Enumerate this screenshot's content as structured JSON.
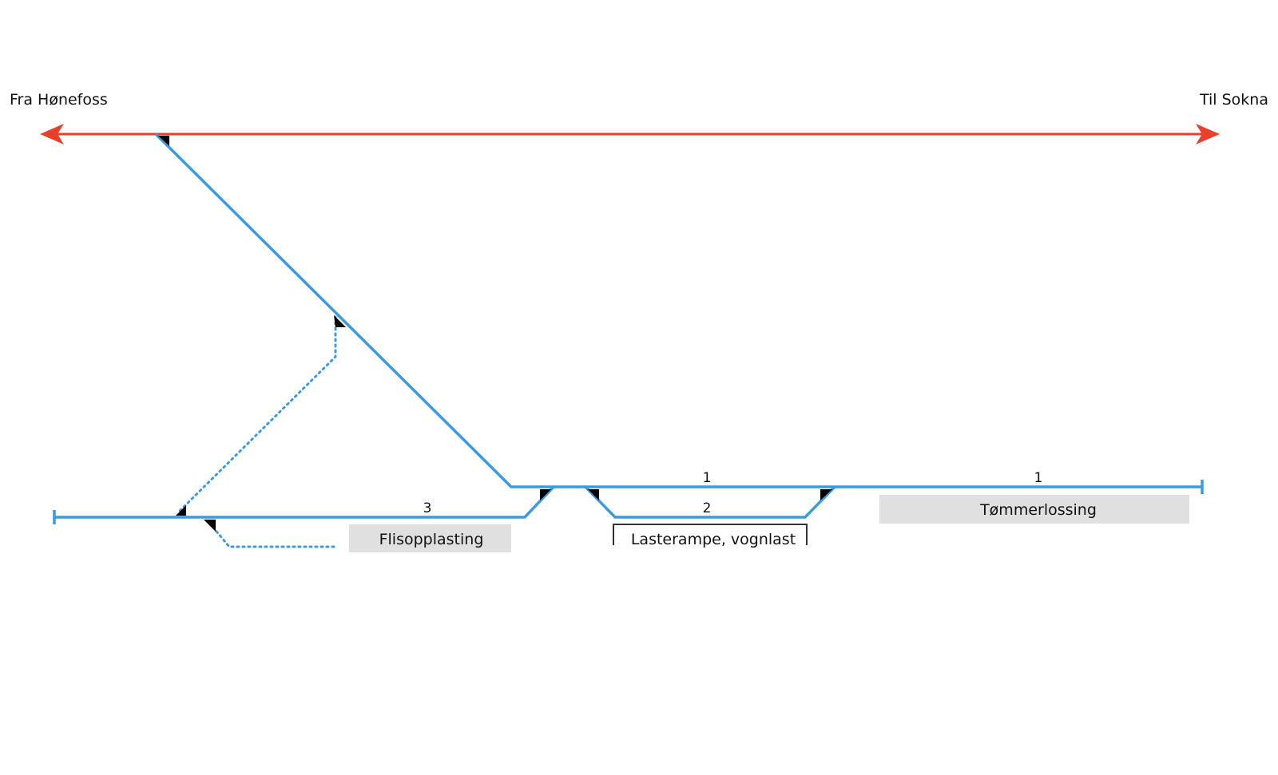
{
  "colors": {
    "main_line": "#e8402a",
    "track": "#3b9be0",
    "box": "#e0e0e0",
    "switch": "#000000"
  },
  "directions": {
    "left": "Fra Hønefoss",
    "right": "Til Sokna"
  },
  "tracks": {
    "track1_a": "1",
    "track1_b": "1",
    "track2": "2",
    "track3": "3"
  },
  "areas": {
    "flis": "Flisopplasting",
    "rampe": "Lasterampe, vognlast",
    "tommer": "Tømmerlossing"
  }
}
